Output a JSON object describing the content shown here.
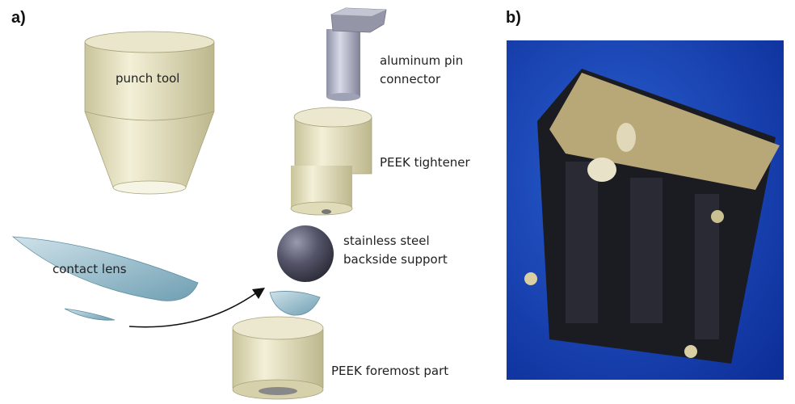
{
  "panel_a": {
    "label": "a)",
    "annotations": [
      {
        "lines": [
          "punch tool"
        ]
      },
      {
        "lines": [
          "aluminum pin",
          "connector"
        ]
      },
      {
        "lines": [
          "PEEK tightener"
        ]
      },
      {
        "lines": [
          "stainless steel",
          "backside support"
        ]
      },
      {
        "lines": [
          "contact lens"
        ]
      },
      {
        "lines": [
          "PEEK foremost part"
        ]
      }
    ]
  },
  "panel_b": {
    "label": "b)"
  }
}
